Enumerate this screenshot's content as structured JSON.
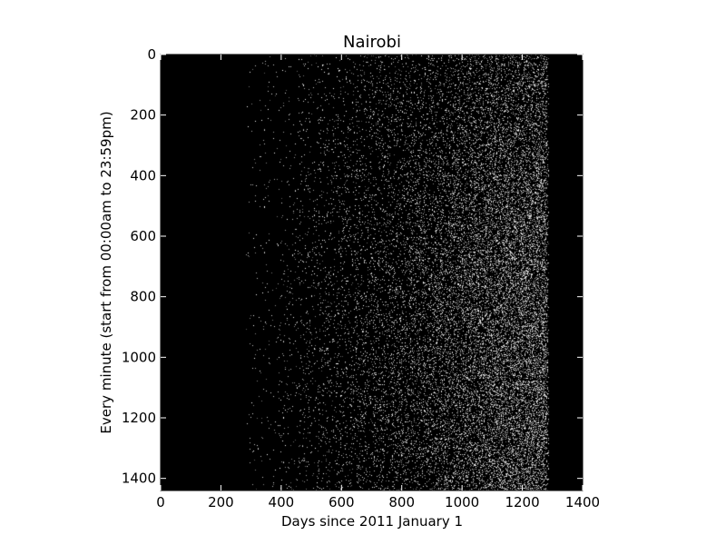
{
  "chart_data": {
    "type": "heatmap",
    "title": "Nairobi",
    "xlabel": "Days since 2011 January 1",
    "ylabel": "Every minute (start from 00:00am to 23:59pm)",
    "xlim": [
      0,
      1400
    ],
    "ylim": [
      0,
      1440
    ],
    "y_inverted": true,
    "x_ticks": [
      0,
      200,
      400,
      600,
      800,
      1000,
      1200,
      1400
    ],
    "y_ticks": [
      0,
      200,
      400,
      600,
      800,
      1000,
      1200,
      1400
    ],
    "background_color": "#000000",
    "point_color": "#ffffff",
    "grid": false,
    "colorbar": false,
    "density_profile": [
      {
        "day": 0,
        "density": 0.0
      },
      {
        "day": 280,
        "density": 0.0
      },
      {
        "day": 300,
        "density": 0.01
      },
      {
        "day": 400,
        "density": 0.02
      },
      {
        "day": 500,
        "density": 0.04
      },
      {
        "day": 600,
        "density": 0.06
      },
      {
        "day": 700,
        "density": 0.09
      },
      {
        "day": 800,
        "density": 0.12
      },
      {
        "day": 900,
        "density": 0.16
      },
      {
        "day": 1000,
        "density": 0.22
      },
      {
        "day": 1100,
        "density": 0.28
      },
      {
        "day": 1200,
        "density": 0.33
      },
      {
        "day": 1280,
        "density": 0.36
      },
      {
        "day": 1290,
        "density": 0.0
      },
      {
        "day": 1400,
        "density": 0.0
      }
    ]
  }
}
